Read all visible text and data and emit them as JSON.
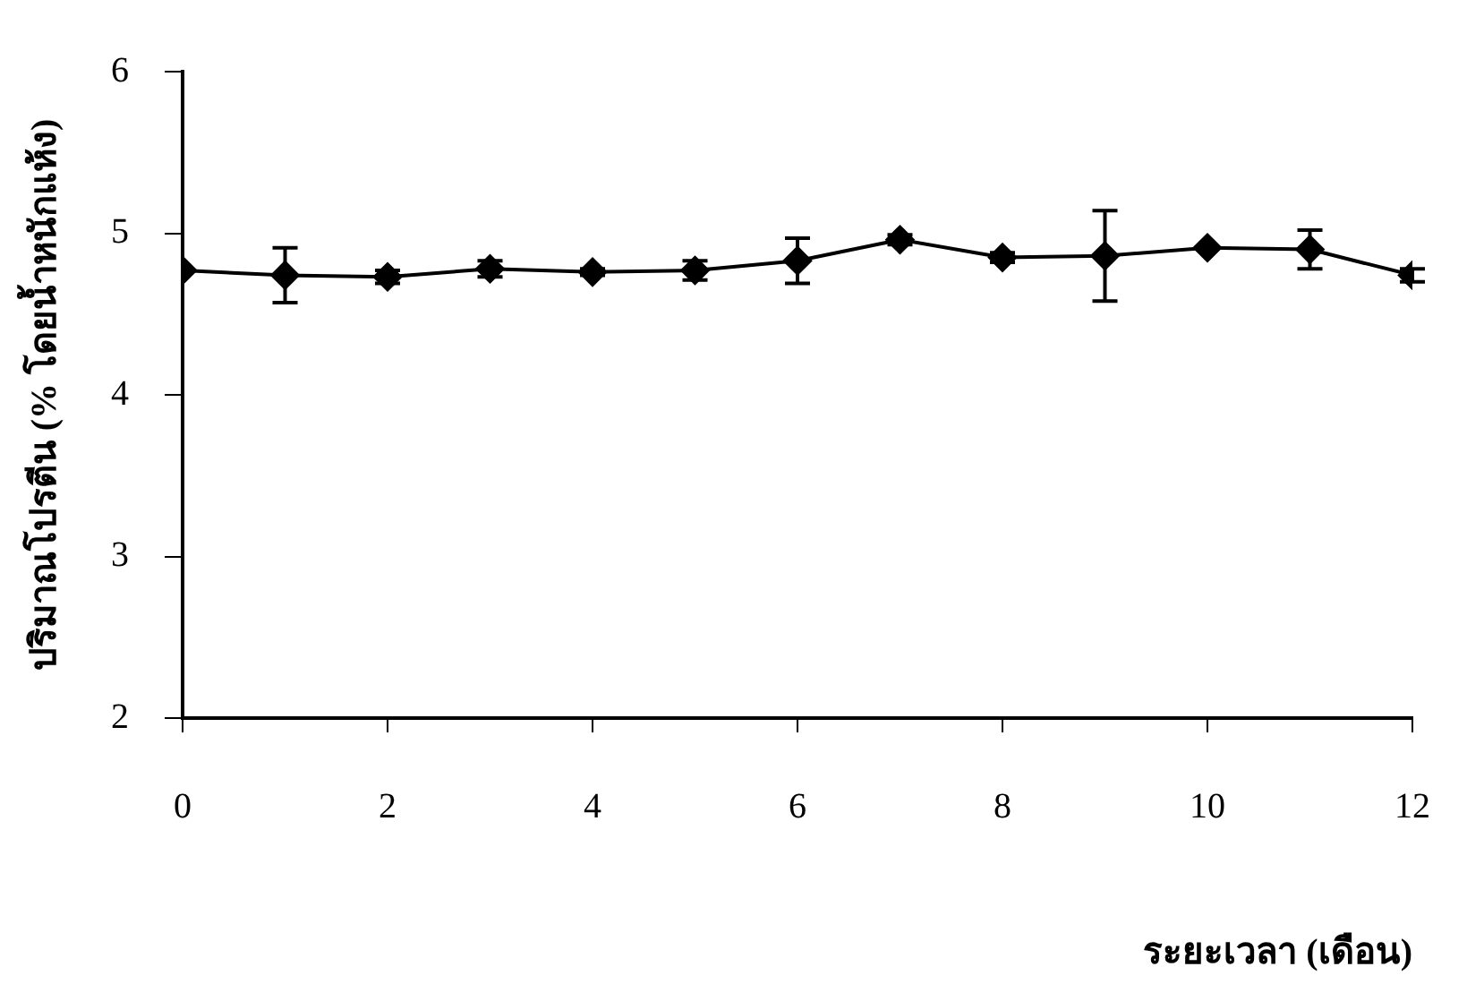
{
  "chart_data": {
    "type": "line",
    "xlabel": "ระยะเวลา (เดือน)",
    "ylabel": "ปริมาณโปรตีน (% โดยน้ำหนักแห้ง)",
    "x": [
      0,
      1,
      2,
      3,
      4,
      5,
      6,
      7,
      8,
      9,
      10,
      11,
      12
    ],
    "values": [
      4.77,
      4.74,
      4.73,
      4.78,
      4.76,
      4.77,
      4.83,
      4.96,
      4.85,
      4.86,
      4.91,
      4.9,
      4.74
    ],
    "errors": [
      null,
      0.17,
      0.04,
      0.05,
      0.02,
      0.06,
      0.14,
      0.03,
      0.03,
      0.28,
      null,
      0.12,
      0.04
    ],
    "color": "#000000",
    "xlim": [
      0,
      12
    ],
    "xticks": [
      0,
      2,
      4,
      6,
      8,
      10,
      12
    ],
    "ylim": [
      2,
      6
    ],
    "yticks": [
      2,
      3,
      4,
      5,
      6
    ],
    "grid": false,
    "legend": false,
    "marker": "diamond",
    "line_style": "solid"
  }
}
